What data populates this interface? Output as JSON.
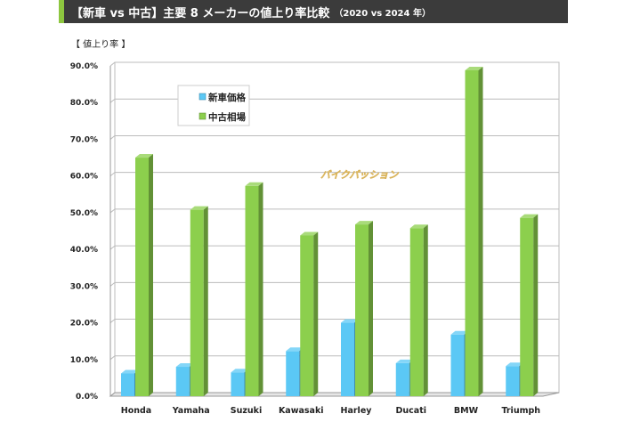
{
  "header": {
    "title": "【新車 vs 中古】主要 8 メーカーの値上り率比較",
    "subtitle": "（2020 vs 2024 年）"
  },
  "watermark": "バイクパッション",
  "chart_data": {
    "type": "bar",
    "title": "【新車 vs 中古】主要 8 メーカーの値上り率比較（2020 vs 2024 年）",
    "ylabel": "【 値上り率 】",
    "xlabel": "",
    "categories": [
      "Honda",
      "Yamaha",
      "Suzuki",
      "Kawasaki",
      "Harley",
      "Ducati",
      "BMW",
      "Triumph"
    ],
    "series": [
      {
        "name": "新車価格",
        "color": "#5bc8f5",
        "values": [
          6.2,
          8.0,
          6.5,
          12.3,
          20.0,
          9.0,
          16.8,
          8.2
        ]
      },
      {
        "name": "中古相場",
        "color": "#8ccf4d",
        "values": [
          65.0,
          50.8,
          57.3,
          43.8,
          46.8,
          45.8,
          88.8,
          48.6
        ]
      }
    ],
    "ylim": [
      0,
      90
    ],
    "yticks": [
      "0.0%",
      "10.0%",
      "20.0%",
      "30.0%",
      "40.0%",
      "50.0%",
      "60.0%",
      "70.0%",
      "80.0%",
      "90.0%"
    ],
    "grid": true,
    "legend_position": "top-left"
  }
}
